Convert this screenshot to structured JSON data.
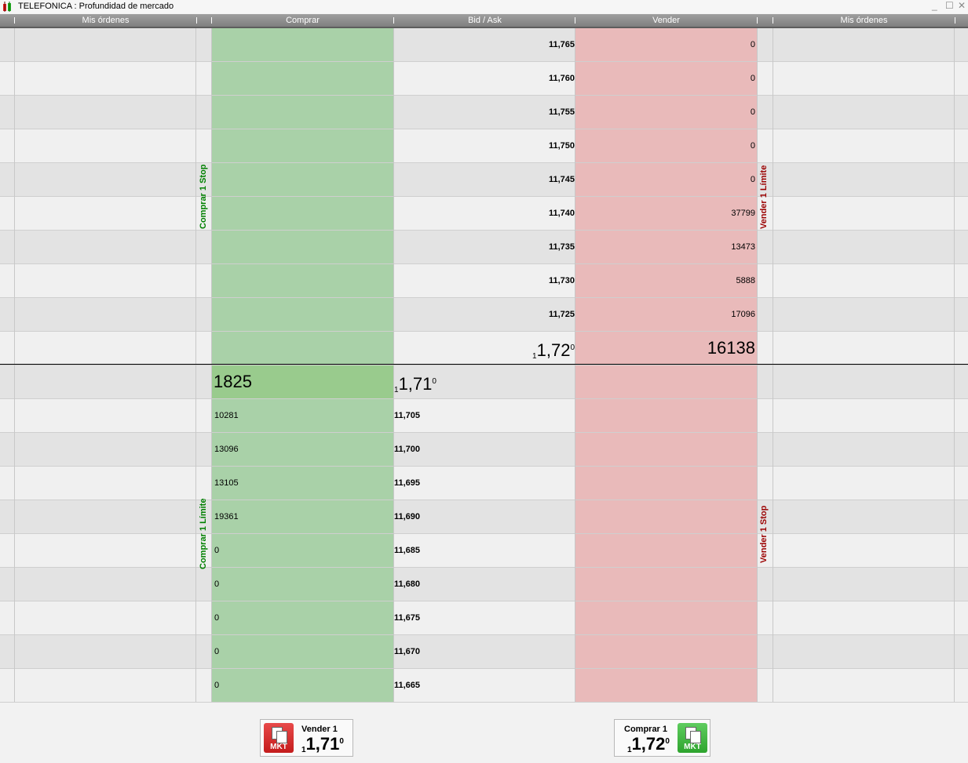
{
  "window": {
    "title": "TELEFONICA : Profundidad de mercado",
    "minimize": "_",
    "maximize": "☐",
    "close": "✕"
  },
  "header": {
    "col_my_orders_left": "Mis órdenes",
    "col_buy": "Comprar",
    "col_bid_ask": "Bid / Ask",
    "col_sell": "Vender",
    "col_my_orders_right": "Mis órdenes"
  },
  "side_labels": {
    "buy_stop": "Comprar 1 Stop",
    "sell_limit": "Vender 1 Límite",
    "buy_limit": "Comprar 1 Límite",
    "sell_stop": "Vender 1 Stop"
  },
  "ask_levels": [
    {
      "price": "11,765",
      "volume": "0"
    },
    {
      "price": "11,760",
      "volume": "0"
    },
    {
      "price": "11,755",
      "volume": "0"
    },
    {
      "price": "11,750",
      "volume": "0"
    },
    {
      "price": "11,745",
      "volume": "0"
    },
    {
      "price": "11,740",
      "volume": "37799"
    },
    {
      "price": "11,735",
      "volume": "13473"
    },
    {
      "price": "11,730",
      "volume": "5888"
    },
    {
      "price": "11,725",
      "volume": "17096"
    }
  ],
  "best_ask": {
    "pre": "1",
    "main": "1,72",
    "post": "0",
    "volume": "16138"
  },
  "best_bid": {
    "pre": "1",
    "main": "1,71",
    "post": "0",
    "volume": "1825"
  },
  "bid_levels": [
    {
      "price": "11,705",
      "volume": "10281"
    },
    {
      "price": "11,700",
      "volume": "13096"
    },
    {
      "price": "11,695",
      "volume": "13105"
    },
    {
      "price": "11,690",
      "volume": "19361"
    },
    {
      "price": "11,685",
      "volume": "0"
    },
    {
      "price": "11,680",
      "volume": "0"
    },
    {
      "price": "11,675",
      "volume": "0"
    },
    {
      "price": "11,670",
      "volume": "0"
    },
    {
      "price": "11,665",
      "volume": "0"
    }
  ],
  "buttons": {
    "sell": {
      "label": "Vender 1",
      "pre": "1",
      "main": "1,71",
      "post": "0",
      "tag": "MKT"
    },
    "buy": {
      "label": "Comprar 1",
      "pre": "1",
      "main": "1,72",
      "post": "0",
      "tag": "MKT"
    }
  },
  "colors": {
    "buy": "#a9d1a8",
    "sell": "#e9baba",
    "buy_label": "#008000",
    "sell_label": "#9b0000"
  }
}
